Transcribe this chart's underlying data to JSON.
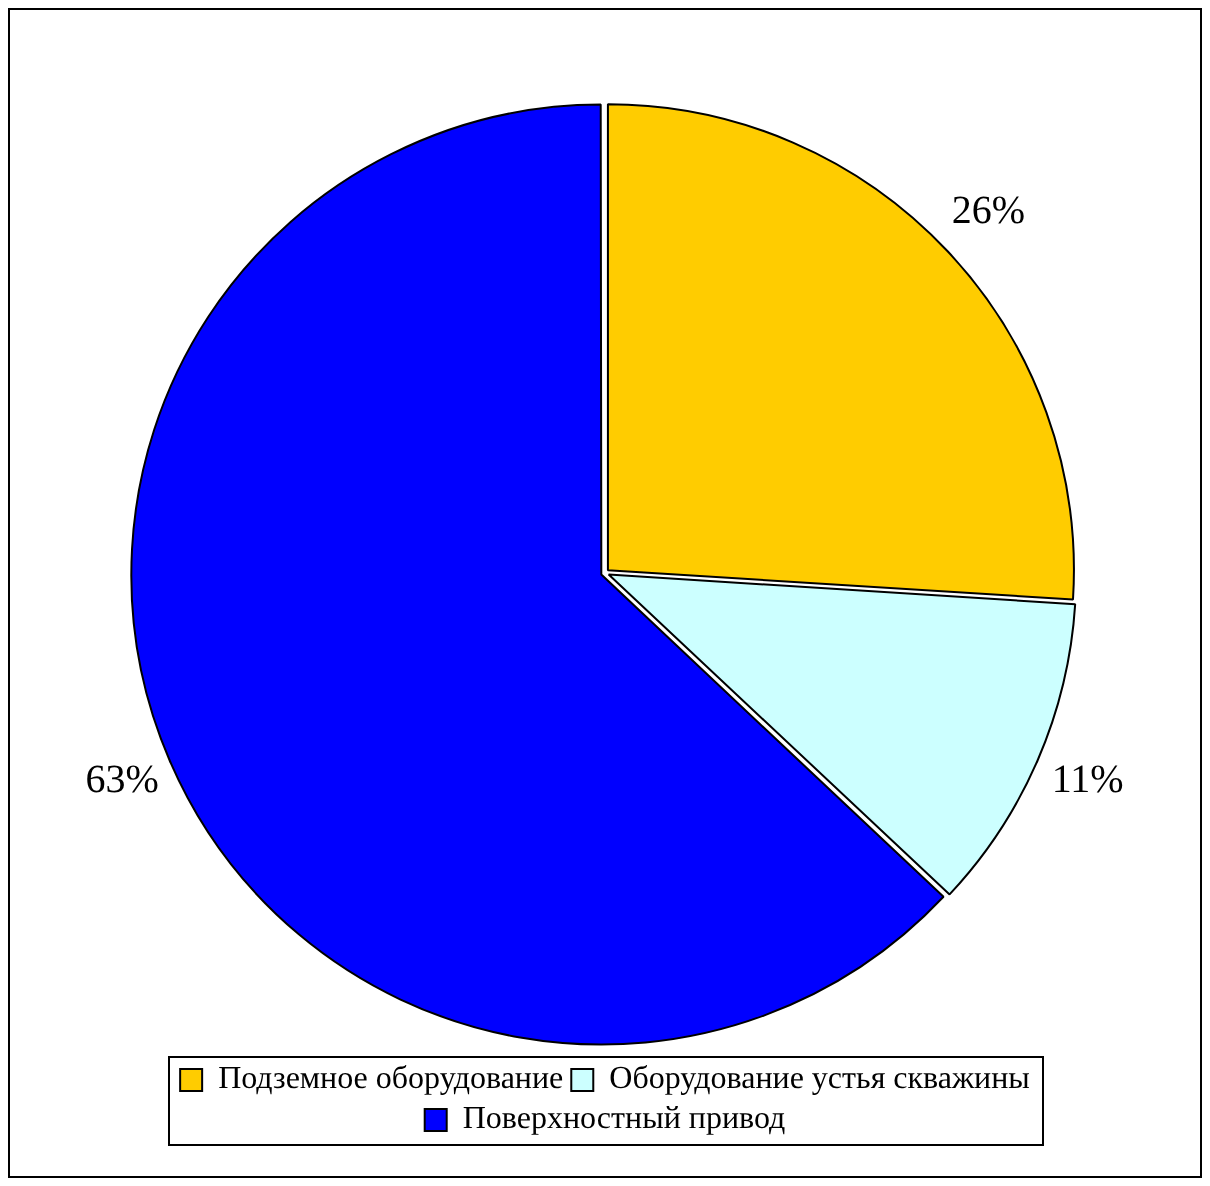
{
  "chart_data": {
    "type": "pie",
    "categories": [
      "Подземное оборудование",
      "Оборудование устья скважины",
      "Поверхностный привод"
    ],
    "values": [
      26,
      11,
      63
    ],
    "colors": [
      "#ffcc00",
      "#ccffff",
      "#0000ff"
    ],
    "value_labels": [
      "26%",
      "11%",
      "63%"
    ],
    "legend": "bottom"
  }
}
